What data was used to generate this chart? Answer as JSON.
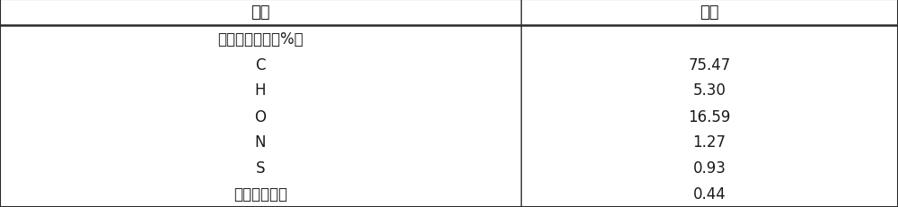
{
  "header_col1": "项目",
  "header_col2": "褐煤",
  "rows": [
    {
      "col1": "元素分析（重量%）",
      "col2": ""
    },
    {
      "col1": "C",
      "col2": "75.47"
    },
    {
      "col1": "H",
      "col2": "5.30"
    },
    {
      "col1": "O",
      "col2": "16.59"
    },
    {
      "col1": "N",
      "col2": "1.27"
    },
    {
      "col1": "S",
      "col2": "0.93"
    },
    {
      "col1": "其他微量元素",
      "col2": "0.44"
    }
  ],
  "col_split": 0.58,
  "bg_color": "#ffffff",
  "border_color": "#2b2b2b",
  "text_color": "#1a1a1a",
  "header_fontsize": 13,
  "body_fontsize": 12,
  "figsize": [
    10.0,
    2.32
  ],
  "dpi": 100
}
